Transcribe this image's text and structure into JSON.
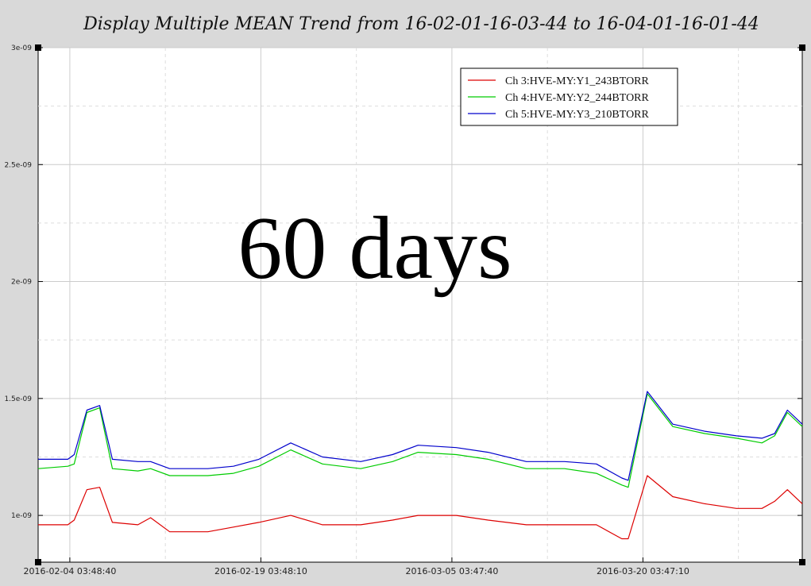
{
  "chart_data": {
    "type": "line",
    "title": "Display Multiple MEAN Trend from 16-02-01-16-03-44 to 16-04-01-16-01-44",
    "annotation": "60 days",
    "xlabel": "",
    "ylabel": "",
    "x_axis_type": "date",
    "xlim": [
      "2016-02-01 16:03:44",
      "2016-04-01 16:01:44"
    ],
    "ylim": [
      8e-10,
      3e-09
    ],
    "y_ticks": [
      {
        "value": 1e-09,
        "label": "1e-09"
      },
      {
        "value": 1.5e-09,
        "label": "1.5e-09"
      },
      {
        "value": 2e-09,
        "label": "2e-09"
      },
      {
        "value": 2.5e-09,
        "label": "2.5e-09"
      },
      {
        "value": 3e-09,
        "label": "3e-09"
      }
    ],
    "x_ticks": [
      {
        "value": "2016-02-04 03:48:40",
        "label": "2016-02-04 03:48:40"
      },
      {
        "value": "2016-02-19 03:48:10",
        "label": "2016-02-19 03:48:10"
      },
      {
        "value": "2016-03-05 03:47:40",
        "label": "2016-03-05 03:47:40"
      },
      {
        "value": "2016-03-20 03:47:10",
        "label": "2016-03-20 03:47:10"
      }
    ],
    "grid": true,
    "legend_position": "top-right",
    "series": [
      {
        "name": "Ch 3:HVE-MY:Y1_243BTORR",
        "color": "#dd0000",
        "x": [
          "2016-02-01 16:03:44",
          "2016-02-04 00:00:00",
          "2016-02-04 12:00:00",
          "2016-02-05 12:00:00",
          "2016-02-06 12:00:00",
          "2016-02-07 12:00:00",
          "2016-02-09 12:00:00",
          "2016-02-10 12:00:00",
          "2016-02-12 00:00:00",
          "2016-02-15 00:00:00",
          "2016-02-17 00:00:00",
          "2016-02-19 00:00:00",
          "2016-02-21 12:00:00",
          "2016-02-24 00:00:00",
          "2016-02-27 00:00:00",
          "2016-02-29 12:00:00",
          "2016-03-02 12:00:00",
          "2016-03-05 12:00:00",
          "2016-03-08 00:00:00",
          "2016-03-11 00:00:00",
          "2016-03-14 00:00:00",
          "2016-03-16 12:00:00",
          "2016-03-18 12:00:00",
          "2016-03-19 00:00:00",
          "2016-03-20 12:00:00",
          "2016-03-22 12:00:00",
          "2016-03-25 00:00:00",
          "2016-03-27 12:00:00",
          "2016-03-29 12:00:00",
          "2016-03-30 12:00:00",
          "2016-03-31 12:00:00",
          "2016-04-01 16:01:44"
        ],
        "y": [
          9.6e-10,
          9.6e-10,
          9.8e-10,
          1.11e-09,
          1.12e-09,
          9.7e-10,
          9.6e-10,
          9.9e-10,
          9.3e-10,
          9.3e-10,
          9.5e-10,
          9.7e-10,
          1e-09,
          9.6e-10,
          9.6e-10,
          9.8e-10,
          1e-09,
          1e-09,
          9.8e-10,
          9.6e-10,
          9.6e-10,
          9.6e-10,
          9e-10,
          9e-10,
          1.17e-09,
          1.08e-09,
          1.05e-09,
          1.03e-09,
          1.03e-09,
          1.06e-09,
          1.11e-09,
          1.05e-09
        ]
      },
      {
        "name": "Ch 4:HVE-MY:Y2_244BTORR",
        "color": "#00cc00",
        "x": [
          "2016-02-01 16:03:44",
          "2016-02-04 00:00:00",
          "2016-02-04 12:00:00",
          "2016-02-05 12:00:00",
          "2016-02-06 12:00:00",
          "2016-02-07 12:00:00",
          "2016-02-09 12:00:00",
          "2016-02-10 12:00:00",
          "2016-02-12 00:00:00",
          "2016-02-15 00:00:00",
          "2016-02-17 00:00:00",
          "2016-02-19 00:00:00",
          "2016-02-21 12:00:00",
          "2016-02-24 00:00:00",
          "2016-02-27 00:00:00",
          "2016-02-29 12:00:00",
          "2016-03-02 12:00:00",
          "2016-03-05 12:00:00",
          "2016-03-08 00:00:00",
          "2016-03-11 00:00:00",
          "2016-03-14 00:00:00",
          "2016-03-16 12:00:00",
          "2016-03-18 12:00:00",
          "2016-03-19 00:00:00",
          "2016-03-20 12:00:00",
          "2016-03-22 12:00:00",
          "2016-03-25 00:00:00",
          "2016-03-27 12:00:00",
          "2016-03-29 12:00:00",
          "2016-03-30 12:00:00",
          "2016-03-31 12:00:00",
          "2016-04-01 16:01:44"
        ],
        "y": [
          1.2e-09,
          1.21e-09,
          1.22e-09,
          1.44e-09,
          1.46e-09,
          1.2e-09,
          1.19e-09,
          1.2e-09,
          1.17e-09,
          1.17e-09,
          1.18e-09,
          1.21e-09,
          1.28e-09,
          1.22e-09,
          1.2e-09,
          1.23e-09,
          1.27e-09,
          1.26e-09,
          1.24e-09,
          1.2e-09,
          1.2e-09,
          1.18e-09,
          1.13e-09,
          1.12e-09,
          1.52e-09,
          1.38e-09,
          1.35e-09,
          1.33e-09,
          1.31e-09,
          1.34e-09,
          1.44e-09,
          1.38e-09
        ]
      },
      {
        "name": "Ch 5:HVE-MY:Y3_210BTORR",
        "color": "#0000cc",
        "x": [
          "2016-02-01 16:03:44",
          "2016-02-04 00:00:00",
          "2016-02-04 12:00:00",
          "2016-02-05 12:00:00",
          "2016-02-06 12:00:00",
          "2016-02-07 12:00:00",
          "2016-02-09 12:00:00",
          "2016-02-10 12:00:00",
          "2016-02-12 00:00:00",
          "2016-02-15 00:00:00",
          "2016-02-17 00:00:00",
          "2016-02-19 00:00:00",
          "2016-02-21 12:00:00",
          "2016-02-24 00:00:00",
          "2016-02-27 00:00:00",
          "2016-02-29 12:00:00",
          "2016-03-02 12:00:00",
          "2016-03-05 12:00:00",
          "2016-03-08 00:00:00",
          "2016-03-11 00:00:00",
          "2016-03-14 00:00:00",
          "2016-03-16 12:00:00",
          "2016-03-18 12:00:00",
          "2016-03-19 00:00:00",
          "2016-03-20 12:00:00",
          "2016-03-22 12:00:00",
          "2016-03-25 00:00:00",
          "2016-03-27 12:00:00",
          "2016-03-29 12:00:00",
          "2016-03-30 12:00:00",
          "2016-03-31 12:00:00",
          "2016-04-01 16:01:44"
        ],
        "y": [
          1.24e-09,
          1.24e-09,
          1.26e-09,
          1.45e-09,
          1.47e-09,
          1.24e-09,
          1.23e-09,
          1.23e-09,
          1.2e-09,
          1.2e-09,
          1.21e-09,
          1.24e-09,
          1.31e-09,
          1.25e-09,
          1.23e-09,
          1.26e-09,
          1.3e-09,
          1.29e-09,
          1.27e-09,
          1.23e-09,
          1.23e-09,
          1.22e-09,
          1.16e-09,
          1.15e-09,
          1.53e-09,
          1.39e-09,
          1.36e-09,
          1.34e-09,
          1.33e-09,
          1.35e-09,
          1.45e-09,
          1.39e-09
        ]
      }
    ]
  }
}
